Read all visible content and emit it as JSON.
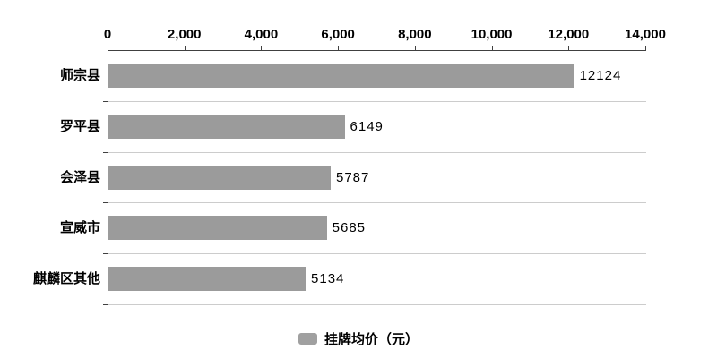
{
  "chart_data": {
    "type": "bar",
    "orientation": "horizontal",
    "title": "",
    "xlabel": "",
    "ylabel": "",
    "categories": [
      "师宗县",
      "罗平县",
      "会泽县",
      "宣威市",
      "麒麟区其他"
    ],
    "values": [
      12124,
      6149,
      5787,
      5685,
      5134
    ],
    "value_labels": [
      "12124",
      "6149",
      "5787",
      "5685",
      "5134"
    ],
    "xlim": [
      0,
      14000
    ],
    "x_tick_values": [
      0,
      2000,
      4000,
      6000,
      8000,
      10000,
      12000,
      14000
    ],
    "x_tick_labels": [
      "0",
      "2,000",
      "4,000",
      "6,000",
      "8,000",
      "10,000",
      "12,000",
      "14,000"
    ],
    "x_axis_position": "top",
    "grid": "category-separators",
    "legend_position": "bottom",
    "legend": [
      {
        "label": "挂牌均价（元）",
        "color": "#a0a0a0"
      }
    ],
    "colors": {
      "bar": "#9b9b9b",
      "axis": "#404040",
      "separator": "#cccccc",
      "text": "#000000",
      "background": "#ffffff"
    }
  }
}
